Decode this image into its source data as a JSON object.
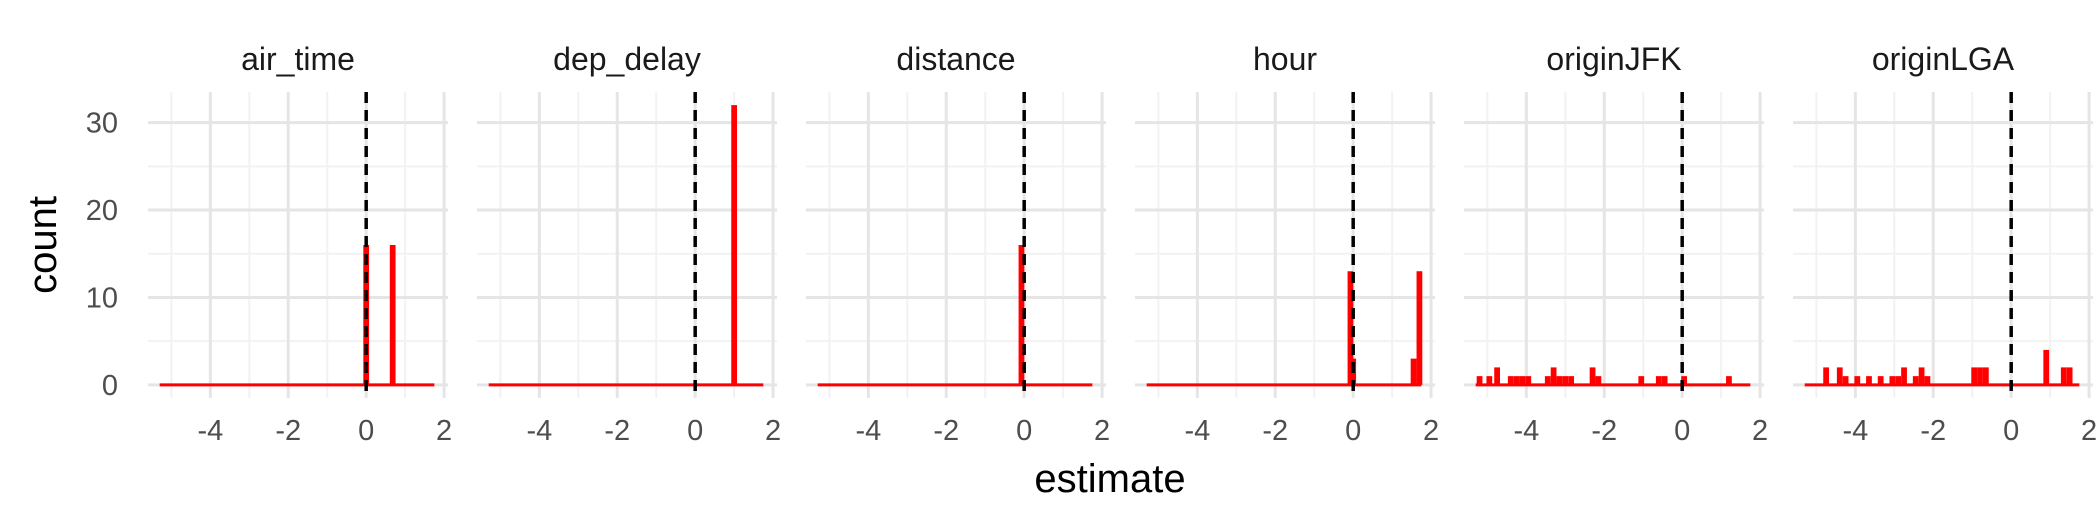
{
  "chart_data": {
    "type": "bar",
    "subtype": "faceted-histogram",
    "xlabel": "estimate",
    "ylabel": "count",
    "xlim": [
      -5.6,
      2.1
    ],
    "ylim": [
      -1.5,
      33.5
    ],
    "x_ticks": [
      -4,
      -2,
      0,
      2
    ],
    "x_tick_labels": [
      "-4",
      "-2",
      "0",
      "2"
    ],
    "y_ticks": [
      0,
      10,
      20,
      30
    ],
    "y_tick_labels": [
      "0",
      "10",
      "20",
      "30"
    ],
    "bin_width": 0.148,
    "baseline_range": [
      -5.3,
      1.75
    ],
    "reference_line": {
      "x": 0,
      "style": "dashed",
      "color": "#000000"
    },
    "grid": true,
    "bar_color": "#ff0000",
    "facets": [
      {
        "name": "air_time",
        "bars": [
          {
            "x": 0.0,
            "count": 16
          },
          {
            "x": 0.68,
            "count": 16
          }
        ]
      },
      {
        "name": "dep_delay",
        "bars": [
          {
            "x": 1.0,
            "count": 32
          }
        ]
      },
      {
        "name": "distance",
        "bars": [
          {
            "x": -0.07,
            "count": 16
          }
        ]
      },
      {
        "name": "hour",
        "bars": [
          {
            "x": -0.07,
            "count": 13
          },
          {
            "x": 0.0,
            "count": 3
          },
          {
            "x": 1.55,
            "count": 3
          },
          {
            "x": 1.7,
            "count": 13
          }
        ]
      },
      {
        "name": "originJFK",
        "bars": [
          {
            "x": -5.2,
            "count": 1
          },
          {
            "x": -4.95,
            "count": 1
          },
          {
            "x": -4.75,
            "count": 2
          },
          {
            "x": -4.4,
            "count": 1
          },
          {
            "x": -4.25,
            "count": 1
          },
          {
            "x": -4.1,
            "count": 1
          },
          {
            "x": -3.95,
            "count": 1
          },
          {
            "x": -3.45,
            "count": 1
          },
          {
            "x": -3.3,
            "count": 2
          },
          {
            "x": -3.15,
            "count": 1
          },
          {
            "x": -3.0,
            "count": 1
          },
          {
            "x": -2.85,
            "count": 1
          },
          {
            "x": -2.3,
            "count": 2
          },
          {
            "x": -2.15,
            "count": 1
          },
          {
            "x": -1.05,
            "count": 1
          },
          {
            "x": -0.6,
            "count": 1
          },
          {
            "x": -0.45,
            "count": 1
          },
          {
            "x": 0.05,
            "count": 1
          },
          {
            "x": 1.2,
            "count": 1
          }
        ]
      },
      {
        "name": "originLGA",
        "bars": [
          {
            "x": -4.75,
            "count": 2
          },
          {
            "x": -4.4,
            "count": 2
          },
          {
            "x": -4.25,
            "count": 1
          },
          {
            "x": -3.95,
            "count": 1
          },
          {
            "x": -3.65,
            "count": 1
          },
          {
            "x": -3.35,
            "count": 1
          },
          {
            "x": -3.05,
            "count": 1
          },
          {
            "x": -2.9,
            "count": 1
          },
          {
            "x": -2.75,
            "count": 2
          },
          {
            "x": -2.45,
            "count": 1
          },
          {
            "x": -2.3,
            "count": 2
          },
          {
            "x": -2.15,
            "count": 1
          },
          {
            "x": -0.95,
            "count": 2
          },
          {
            "x": -0.8,
            "count": 2
          },
          {
            "x": -0.65,
            "count": 2
          },
          {
            "x": 0.9,
            "count": 4
          },
          {
            "x": 1.35,
            "count": 2
          },
          {
            "x": 1.5,
            "count": 2
          }
        ]
      }
    ]
  }
}
